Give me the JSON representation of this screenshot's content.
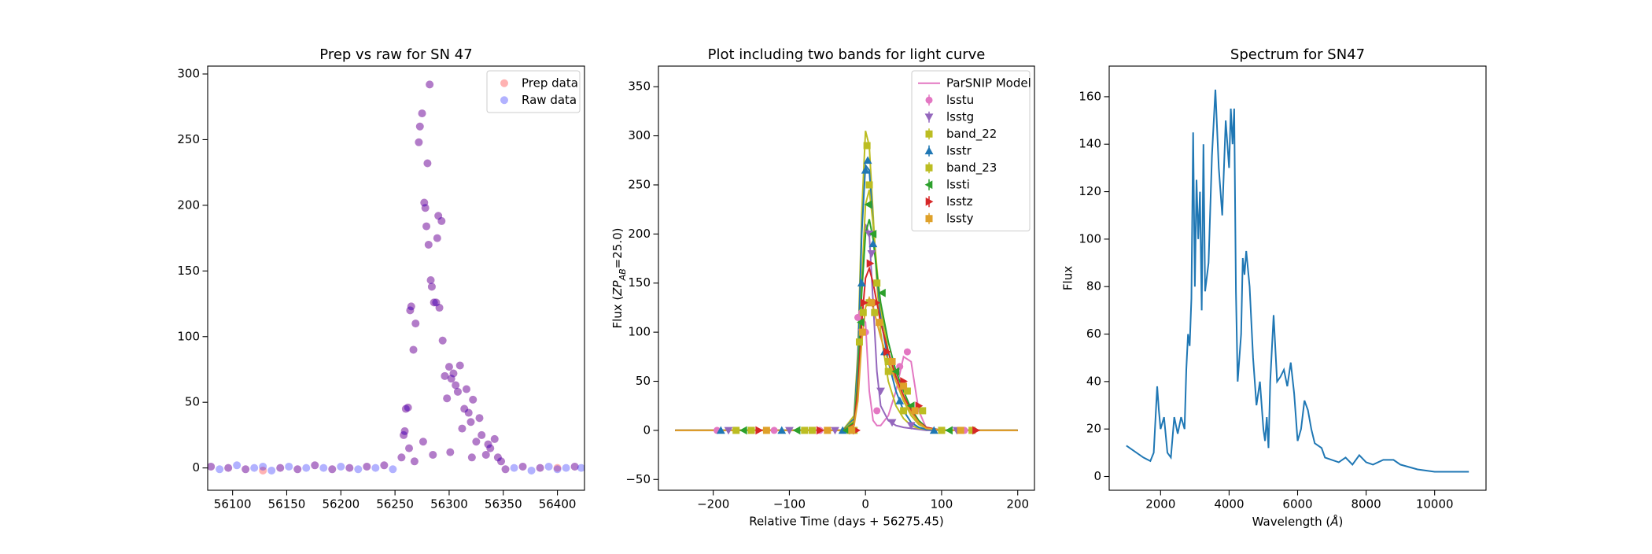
{
  "chart_data": [
    {
      "type": "scatter",
      "title": "Prep vs raw for SN 47",
      "legend": "upper right",
      "xlim": [
        56077,
        56425
      ],
      "xticks": [
        56100,
        56150,
        56200,
        56250,
        56300,
        56350,
        56400
      ],
      "ylim": [
        -17,
        306
      ],
      "yticks": [
        0,
        50,
        100,
        150,
        200,
        250,
        300
      ],
      "series": [
        {
          "name": "Prep data",
          "color": "#ff0000",
          "alpha": 0.3,
          "x": [
            56080,
            56096,
            56112,
            56128,
            56144,
            56160,
            56176,
            56192,
            56208,
            56224,
            56240,
            56352,
            56368,
            56384,
            56400,
            56416,
            56256,
            56258,
            56259,
            56260,
            56262,
            56263,
            56264,
            56265,
            56267,
            56268,
            56269,
            56272,
            56273,
            56275,
            56276,
            56277,
            56278,
            56279,
            56280,
            56281,
            56282,
            56283,
            56284,
            56285,
            56286,
            56288,
            56289,
            56290,
            56291,
            56293,
            56294,
            56296,
            56298,
            56300,
            56301,
            56302,
            56304,
            56306,
            56308,
            56310,
            56312,
            56314,
            56316,
            56318,
            56320,
            56321,
            56322,
            56325,
            56328,
            56330,
            56334,
            56336,
            56338,
            56342,
            56345,
            56348
          ],
          "values": [
            1,
            0,
            -1,
            -2,
            0,
            -1,
            2,
            -1,
            0,
            1,
            2,
            -1,
            1,
            0,
            0,
            1,
            8,
            25,
            28,
            45,
            46,
            15,
            120,
            123,
            90,
            5,
            110,
            248,
            260,
            270,
            20,
            202,
            198,
            184,
            232,
            170,
            292,
            143,
            138,
            10,
            126,
            126,
            175,
            192,
            122,
            188,
            97,
            70,
            53,
            77,
            12,
            68,
            72,
            63,
            58,
            78,
            30,
            45,
            60,
            42,
            35,
            8,
            52,
            20,
            38,
            25,
            10,
            18,
            15,
            22,
            8,
            5
          ]
        },
        {
          "name": "Raw data",
          "color": "#0000ff",
          "alpha": 0.3,
          "x": [
            56080,
            56088,
            56096,
            56104,
            56112,
            56120,
            56128,
            56136,
            56144,
            56152,
            56160,
            56168,
            56176,
            56184,
            56192,
            56200,
            56208,
            56216,
            56224,
            56232,
            56240,
            56248,
            56352,
            56360,
            56368,
            56376,
            56384,
            56392,
            56400,
            56408,
            56416,
            56422,
            56256,
            56258,
            56259,
            56260,
            56262,
            56263,
            56264,
            56265,
            56267,
            56268,
            56269,
            56272,
            56273,
            56275,
            56276,
            56277,
            56278,
            56279,
            56280,
            56281,
            56282,
            56283,
            56284,
            56285,
            56286,
            56288,
            56289,
            56290,
            56291,
            56293,
            56294,
            56296,
            56298,
            56300,
            56301,
            56302,
            56304,
            56306,
            56308,
            56310,
            56312,
            56314,
            56316,
            56318,
            56320,
            56321,
            56322,
            56325,
            56328,
            56330,
            56334,
            56336,
            56338,
            56342,
            56345,
            56348
          ],
          "values": [
            1,
            -1,
            0,
            2,
            -1,
            0,
            1,
            -2,
            0,
            1,
            -1,
            0,
            2,
            0,
            -1,
            1,
            0,
            -1,
            1,
            0,
            2,
            -1,
            -1,
            0,
            1,
            -2,
            0,
            1,
            -1,
            0,
            1,
            0,
            8,
            25,
            28,
            45,
            46,
            15,
            120,
            123,
            90,
            5,
            110,
            248,
            260,
            270,
            20,
            202,
            198,
            184,
            232,
            170,
            292,
            143,
            138,
            10,
            126,
            126,
            175,
            192,
            122,
            188,
            97,
            70,
            53,
            77,
            12,
            68,
            72,
            63,
            58,
            78,
            30,
            45,
            60,
            42,
            35,
            8,
            52,
            20,
            38,
            25,
            10,
            18,
            15,
            22,
            8,
            5
          ]
        }
      ]
    },
    {
      "type": "lightcurve",
      "title": "Plot including two bands for light curve",
      "legend": "upper right",
      "xlabel": "Relative Time (days + 56275.45)",
      "ylabel": [
        "Flux (",
        "ZP",
        "AB",
        "=25.0)"
      ],
      "xlim": [
        -272,
        222
      ],
      "xticks": [
        {
          "value": -200,
          "label": "−200"
        },
        {
          "value": -100,
          "label": "−100"
        },
        0,
        100,
        200
      ],
      "ylim": [
        -61,
        371
      ],
      "yticks": [
        {
          "value": -50,
          "label": "−50"
        },
        0,
        50,
        100,
        150,
        200,
        250,
        300,
        350
      ],
      "model_label": "ParSNIP Model",
      "model_color": "#e377c2",
      "model_x": [
        -250,
        -30,
        -15,
        -10,
        -5,
        0,
        5,
        10,
        15,
        20,
        30,
        40,
        50,
        60,
        70,
        80,
        100,
        200
      ],
      "series": [
        {
          "name": "lsstu",
          "color": "#e377c2",
          "marker": "circle",
          "x": [
            -195,
            -120,
            -60,
            -10,
            -5,
            0,
            15,
            45,
            55,
            130
          ],
          "values": [
            0,
            0,
            0,
            115,
            120,
            100,
            20,
            65,
            80,
            0
          ],
          "model": [
            0,
            0,
            5,
            60,
            115,
            110,
            40,
            10,
            5,
            5,
            15,
            40,
            75,
            70,
            20,
            2,
            0,
            0
          ]
        },
        {
          "name": "lsstg",
          "color": "#9467bd",
          "marker": "down",
          "x": [
            -180,
            -100,
            -40,
            -5,
            5,
            8,
            20,
            35,
            60,
            120
          ],
          "values": [
            0,
            0,
            0,
            100,
            200,
            180,
            40,
            8,
            5,
            0
          ],
          "model": [
            0,
            0,
            10,
            60,
            150,
            210,
            200,
            130,
            60,
            25,
            10,
            5,
            3,
            2,
            1,
            0,
            0,
            0
          ]
        },
        {
          "name": "band_22",
          "color": "#bcbd22",
          "marker": "square",
          "x": [
            -150,
            -80,
            -20,
            -8,
            2,
            5,
            15,
            30,
            50,
            100
          ],
          "values": [
            0,
            0,
            0,
            90,
            290,
            250,
            150,
            60,
            20,
            0
          ],
          "model": [
            0,
            0,
            15,
            80,
            220,
            305,
            290,
            220,
            150,
            100,
            50,
            25,
            12,
            5,
            2,
            1,
            0,
            0
          ]
        },
        {
          "name": "lsstr",
          "color": "#1f77b4",
          "marker": "up",
          "x": [
            -190,
            -110,
            -30,
            -5,
            0,
            3,
            10,
            25,
            45,
            90
          ],
          "values": [
            0,
            0,
            0,
            150,
            265,
            275,
            190,
            80,
            30,
            0
          ],
          "model": [
            0,
            0,
            12,
            70,
            200,
            270,
            265,
            210,
            160,
            115,
            70,
            40,
            20,
            8,
            3,
            1,
            0,
            0
          ]
        },
        {
          "name": "band_23",
          "color": "#bcbd22",
          "marker": "square",
          "x": [
            -170,
            -70,
            -15,
            -3,
            5,
            12,
            30,
            55,
            75,
            140
          ],
          "values": [
            0,
            0,
            0,
            120,
            130,
            120,
            70,
            40,
            20,
            0
          ],
          "model": [
            0,
            0,
            10,
            55,
            150,
            230,
            245,
            210,
            165,
            125,
            80,
            50,
            30,
            15,
            6,
            2,
            0,
            0
          ]
        },
        {
          "name": "lssti",
          "color": "#2ca02c",
          "marker": "left",
          "x": [
            -160,
            -90,
            -25,
            -6,
            4,
            10,
            22,
            40,
            60,
            110
          ],
          "values": [
            0,
            0,
            0,
            110,
            230,
            200,
            140,
            60,
            25,
            0
          ],
          "model": [
            0,
            0,
            8,
            50,
            140,
            200,
            215,
            195,
            160,
            130,
            90,
            60,
            40,
            22,
            10,
            3,
            0,
            0
          ]
        },
        {
          "name": "lsstz",
          "color": "#d62728",
          "marker": "right",
          "x": [
            -140,
            -60,
            -12,
            -2,
            6,
            14,
            28,
            50,
            70,
            145
          ],
          "values": [
            0,
            0,
            0,
            130,
            170,
            130,
            80,
            50,
            25,
            0
          ],
          "model": [
            0,
            0,
            6,
            40,
            110,
            155,
            165,
            150,
            130,
            110,
            80,
            55,
            35,
            20,
            8,
            3,
            0,
            0
          ]
        },
        {
          "name": "lssty",
          "color": "#dfa12a",
          "marker": "square",
          "x": [
            -130,
            -50,
            -18,
            -4,
            8,
            18,
            35,
            50,
            65,
            125
          ],
          "values": [
            0,
            0,
            0,
            100,
            130,
            110,
            70,
            45,
            20,
            0
          ],
          "model": [
            0,
            0,
            5,
            30,
            90,
            125,
            135,
            125,
            110,
            95,
            70,
            50,
            32,
            18,
            8,
            2,
            0,
            0
          ]
        }
      ]
    },
    {
      "type": "line",
      "title": "Spectrum for SN47",
      "xlabel": [
        "Wavelength (",
        "Å",
        ")"
      ],
      "ylabel": "Flux",
      "color": "#1f77b4",
      "xlim": [
        500,
        11500
      ],
      "xticks": [
        2000,
        4000,
        6000,
        8000,
        10000
      ],
      "ylim": [
        -5.8,
        172.9
      ],
      "yticks": [
        0,
        20,
        40,
        60,
        80,
        100,
        120,
        140,
        160
      ],
      "x": [
        1000,
        1500,
        1700,
        1800,
        1900,
        1950,
        2000,
        2100,
        2200,
        2300,
        2400,
        2500,
        2600,
        2700,
        2750,
        2800,
        2850,
        2900,
        2950,
        3000,
        3050,
        3100,
        3150,
        3200,
        3250,
        3300,
        3400,
        3500,
        3600,
        3700,
        3800,
        3900,
        4000,
        4050,
        4100,
        4150,
        4200,
        4250,
        4350,
        4400,
        4450,
        4500,
        4600,
        4700,
        4800,
        4900,
        5000,
        5050,
        5100,
        5150,
        5200,
        5300,
        5400,
        5500,
        5600,
        5700,
        5800,
        5900,
        6000,
        6100,
        6200,
        6300,
        6400,
        6500,
        6700,
        6800,
        7000,
        7200,
        7400,
        7600,
        7800,
        8000,
        8200,
        8500,
        8800,
        9000,
        9500,
        10000,
        11000
      ],
      "values": [
        13,
        8,
        6.5,
        10,
        38,
        28,
        20,
        25,
        10,
        8,
        25,
        18,
        25,
        20,
        45,
        60,
        55,
        75,
        145,
        80,
        125,
        100,
        120,
        70,
        140,
        78,
        90,
        135,
        163,
        130,
        110,
        150,
        130,
        155,
        140,
        155,
        78,
        40,
        60,
        92,
        85,
        95,
        80,
        50,
        30,
        40,
        20,
        15,
        25,
        12,
        40,
        68,
        40,
        42,
        45,
        38,
        48,
        35,
        15,
        20,
        32,
        28,
        20,
        14,
        12,
        8,
        7,
        6,
        8,
        5,
        9,
        6,
        5,
        7,
        7,
        5,
        3,
        2,
        2
      ]
    }
  ]
}
